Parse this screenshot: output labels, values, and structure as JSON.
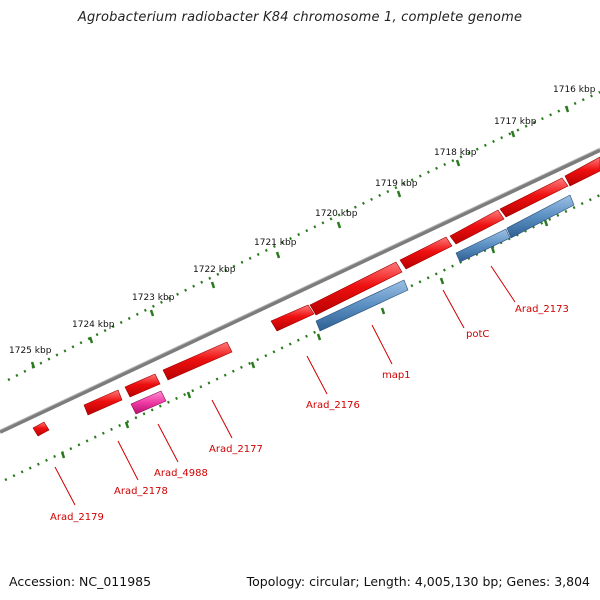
{
  "title": "Agrobacterium radiobacter K84 chromosome 1, complete genome",
  "footer": {
    "accession": "Accession: NC_011985",
    "summary": "Topology: circular; Length: 4,005,130 bp; Genes: 3,804"
  },
  "colors": {
    "backbone": "#8a8a8a",
    "ticks": "#2b7a1f",
    "gene_red": "#ee1010",
    "gene_blue": "#5a8fc2",
    "gene_pink": "#f03aa6",
    "label": "#d00000",
    "leader": "#d00000"
  },
  "scale_labels": [
    "1716 kbp",
    "1717 kbp",
    "1718 kbp",
    "1719 kbp",
    "1720 kbp",
    "1721 kbp",
    "1722 kbp",
    "1723 kbp",
    "1724 kbp",
    "1725 kbp"
  ],
  "gene_labels": [
    "Arad_2173",
    "potC",
    "map1",
    "Arad_2176",
    "Arad_2177",
    "Arad_4988",
    "Arad_2178",
    "Arad_2179"
  ]
}
